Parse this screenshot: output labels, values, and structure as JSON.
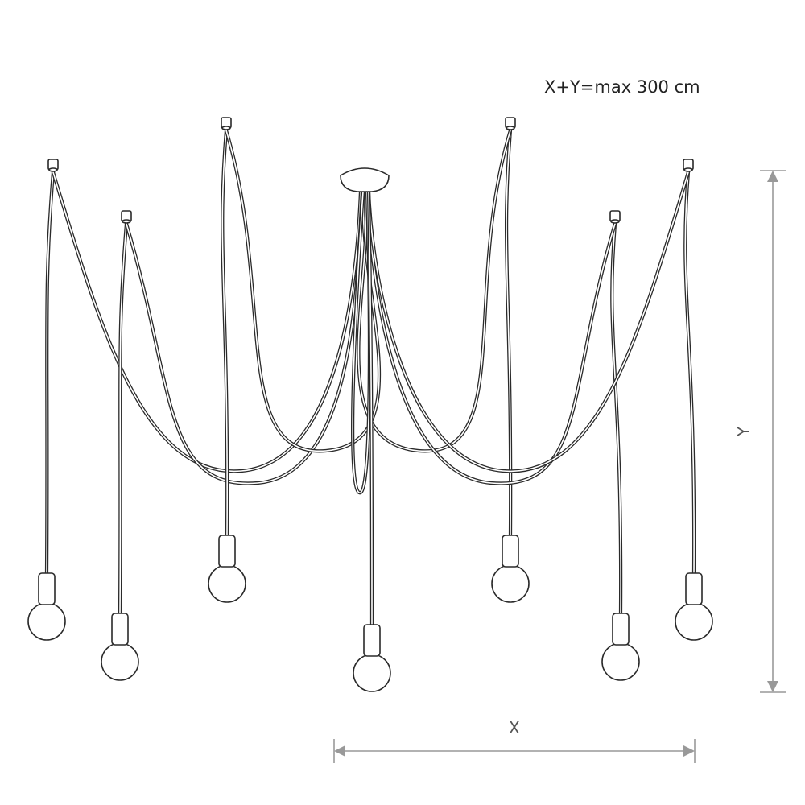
{
  "annotation": {
    "formula": "X+Y=max 300 cm"
  },
  "dimensions": {
    "x_label": "X",
    "y_label": "Y"
  },
  "lamp": {
    "pendant_count": 7,
    "line_color": "#2a2a2a",
    "dimension_color": "#999999"
  }
}
